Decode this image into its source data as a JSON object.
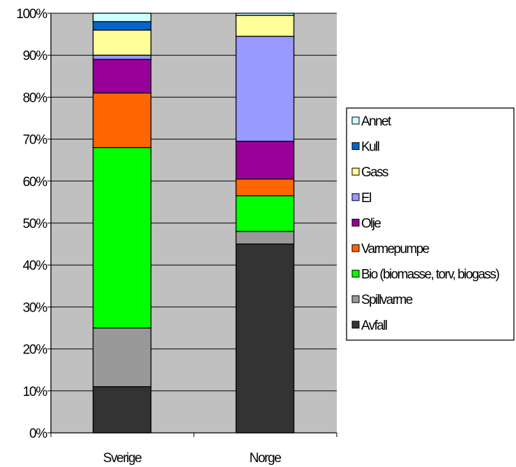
{
  "chart_data": {
    "type": "bar",
    "stacked": "percent",
    "categories": [
      "Sverige",
      "Norge"
    ],
    "series": [
      {
        "name": "Avfall",
        "color": "#333333",
        "values": [
          11,
          45
        ]
      },
      {
        "name": "Spillvarme",
        "color": "#999999",
        "values": [
          14,
          3
        ]
      },
      {
        "name": "Bio (biomasse, torv, biogass)",
        "color": "#00ff00",
        "values": [
          43,
          8.5
        ]
      },
      {
        "name": "Varmepumpe",
        "color": "#ff6600",
        "values": [
          13,
          4
        ]
      },
      {
        "name": "Olje",
        "color": "#990099",
        "values": [
          8,
          9
        ]
      },
      {
        "name": "El",
        "color": "#9999ff",
        "values": [
          1,
          25
        ]
      },
      {
        "name": "Gass",
        "color": "#ffff99",
        "values": [
          6,
          5
        ]
      },
      {
        "name": "Kull",
        "color": "#0066cc",
        "values": [
          2,
          0
        ]
      },
      {
        "name": "Annet",
        "color": "#ccffff",
        "values": [
          2,
          0.5
        ]
      }
    ],
    "ylim": [
      0,
      100
    ],
    "yticks": [
      "0%",
      "10%",
      "20%",
      "30%",
      "40%",
      "50%",
      "60%",
      "70%",
      "80%",
      "90%",
      "100%"
    ],
    "legend_position": "right",
    "legend_entries": [
      "Annet",
      "Kull",
      "Gass",
      "El",
      "Olje",
      "Varmepumpe",
      "Bio (biomasse, torv, biogass)",
      "Spillvarme",
      "Avfall"
    ],
    "plot_background": "#c0c0c0",
    "grid": true
  }
}
